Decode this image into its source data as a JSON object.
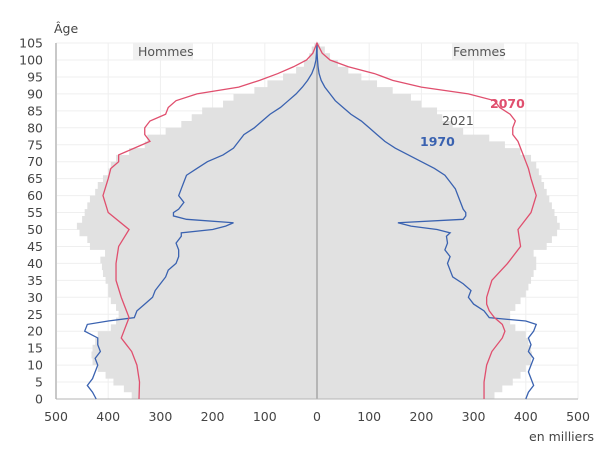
{
  "chart_data": {
    "type": "population_pyramid",
    "title": "",
    "ylabel": "Âge",
    "xlabel": "en milliers",
    "ylim": [
      0,
      105
    ],
    "xlim": [
      -500,
      500
    ],
    "y_ticks": [
      0,
      5,
      10,
      15,
      20,
      25,
      30,
      35,
      40,
      45,
      50,
      55,
      60,
      65,
      70,
      75,
      80,
      85,
      90,
      95,
      100,
      105
    ],
    "x_ticks": [
      500,
      400,
      300,
      200,
      100,
      0,
      100,
      200,
      300,
      400,
      500
    ],
    "side_labels": {
      "left": "Hommes",
      "right": "Femmes"
    },
    "grid": true,
    "series": [
      {
        "name": "2021",
        "style": "filled-area",
        "color": "#e1e1e1",
        "label_color": "#555555",
        "ages": [
          0,
          2,
          4,
          6,
          8,
          10,
          12,
          14,
          16,
          18,
          20,
          22,
          24,
          26,
          28,
          30,
          32,
          34,
          36,
          38,
          40,
          42,
          44,
          46,
          48,
          50,
          52,
          54,
          56,
          58,
          60,
          62,
          64,
          66,
          68,
          70,
          72,
          74,
          76,
          78,
          80,
          82,
          84,
          86,
          88,
          90,
          92,
          94,
          96,
          98,
          100,
          102,
          104
        ],
        "hommes": [
          355,
          370,
          390,
          405,
          420,
          430,
          432,
          430,
          425,
          420,
          395,
          385,
          380,
          385,
          395,
          400,
          400,
          405,
          410,
          412,
          415,
          406,
          435,
          440,
          455,
          460,
          450,
          445,
          440,
          435,
          425,
          420,
          410,
          400,
          395,
          385,
          360,
          330,
          325,
          290,
          260,
          240,
          220,
          180,
          160,
          120,
          95,
          65,
          40,
          25,
          15,
          10,
          5
        ],
        "femmes": [
          340,
          355,
          375,
          390,
          400,
          410,
          412,
          410,
          405,
          400,
          380,
          370,
          370,
          380,
          390,
          400,
          405,
          410,
          415,
          420,
          420,
          415,
          440,
          450,
          460,
          465,
          460,
          455,
          450,
          445,
          440,
          435,
          430,
          425,
          420,
          410,
          390,
          360,
          330,
          280,
          260,
          240,
          230,
          200,
          180,
          145,
          115,
          85,
          60,
          40,
          25,
          15,
          5
        ]
      },
      {
        "name": "1970",
        "style": "line",
        "color": "#3a62b0",
        "ages": [
          0,
          2,
          4,
          6,
          8,
          10,
          12,
          14,
          16,
          18,
          20,
          22,
          23,
          24,
          26,
          28,
          30,
          32,
          34,
          36,
          38,
          40,
          42,
          44,
          46,
          48,
          49,
          50,
          51,
          52,
          53,
          54,
          55,
          56,
          58,
          60,
          62,
          64,
          66,
          68,
          70,
          72,
          74,
          76,
          78,
          80,
          82,
          84,
          86,
          88,
          90,
          92,
          94,
          96,
          98,
          100,
          102,
          105
        ],
        "hommes": [
          423,
          430,
          440,
          430,
          425,
          420,
          425,
          415,
          420,
          420,
          445,
          440,
          400,
          350,
          345,
          330,
          315,
          310,
          300,
          290,
          285,
          270,
          265,
          265,
          270,
          260,
          260,
          200,
          175,
          160,
          250,
          275,
          275,
          265,
          255,
          265,
          260,
          255,
          250,
          230,
          210,
          180,
          160,
          150,
          140,
          120,
          105,
          90,
          70,
          55,
          40,
          28,
          18,
          10,
          5,
          2,
          1,
          0
        ],
        "femmes": [
          400,
          405,
          415,
          410,
          405,
          410,
          415,
          405,
          410,
          405,
          415,
          420,
          400,
          330,
          320,
          300,
          290,
          295,
          280,
          260,
          255,
          250,
          255,
          245,
          250,
          248,
          255,
          230,
          180,
          155,
          280,
          285,
          285,
          280,
          275,
          270,
          265,
          255,
          245,
          225,
          200,
          175,
          150,
          130,
          115,
          100,
          85,
          65,
          50,
          35,
          25,
          15,
          8,
          4,
          2,
          1,
          0,
          0
        ]
      },
      {
        "name": "2070",
        "style": "line",
        "color": "#e04f6e",
        "ages": [
          0,
          5,
          10,
          14,
          18,
          20,
          22,
          24,
          26,
          28,
          30,
          35,
          40,
          45,
          50,
          55,
          60,
          65,
          68,
          70,
          72,
          74,
          76,
          78,
          80,
          82,
          84,
          86,
          88,
          90,
          92,
          94,
          96,
          98,
          100,
          102,
          105
        ],
        "hommes": [
          341,
          340,
          345,
          355,
          375,
          370,
          365,
          360,
          365,
          370,
          375,
          385,
          385,
          380,
          360,
          400,
          410,
          400,
          395,
          380,
          380,
          350,
          320,
          330,
          330,
          320,
          290,
          285,
          270,
          230,
          150,
          110,
          75,
          45,
          20,
          8,
          0
        ],
        "femmes": [
          320,
          320,
          325,
          335,
          355,
          360,
          355,
          340,
          330,
          325,
          325,
          335,
          365,
          390,
          385,
          410,
          420,
          410,
          405,
          400,
          395,
          390,
          385,
          375,
          375,
          380,
          370,
          350,
          340,
          290,
          200,
          145,
          110,
          60,
          25,
          10,
          0
        ]
      }
    ],
    "annotations": [
      {
        "text": "2070",
        "series": "2070",
        "side": "femmes",
        "age": 87
      },
      {
        "text": "2021",
        "series": "2021",
        "side": "femmes",
        "age": 82
      },
      {
        "text": "1970",
        "series": "1970",
        "side": "femmes",
        "age": 75
      }
    ]
  }
}
